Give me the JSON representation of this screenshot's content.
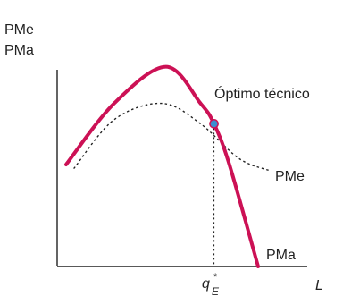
{
  "chart_data": {
    "type": "line",
    "ylabel_lines": [
      "PMe",
      "PMa"
    ],
    "xlabel": "L",
    "annotation": "Óptimo técnico",
    "x_tick": {
      "base": "q",
      "subscript": "E",
      "superscript": "*"
    },
    "series": [
      {
        "name": "PMa",
        "style": "solid",
        "color": "#cc1155",
        "points": [
          [
            0.0,
            0.5
          ],
          [
            0.25,
            0.8
          ],
          [
            0.52,
            0.98
          ],
          [
            0.7,
            0.8
          ],
          [
            0.77,
            0.7
          ],
          [
            0.85,
            0.5
          ],
          [
            1.0,
            0.0
          ]
        ]
      },
      {
        "name": "PMe",
        "style": "dotted",
        "color": "#222222",
        "points": [
          [
            0.04,
            0.48
          ],
          [
            0.25,
            0.72
          ],
          [
            0.5,
            0.8
          ],
          [
            0.7,
            0.7
          ],
          [
            0.9,
            0.53
          ],
          [
            1.06,
            0.47
          ]
        ]
      }
    ],
    "optimum": {
      "x": 0.77,
      "y": 0.7,
      "marker_color": "#3b8fd0"
    },
    "axis_color": "#222222"
  }
}
